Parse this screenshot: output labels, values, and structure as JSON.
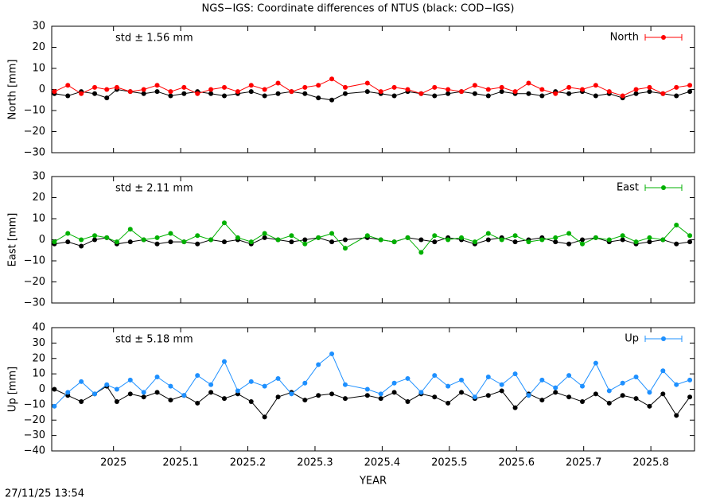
{
  "title": "NGS−IGS: Coordinate differences of NTUS (black: COD−IGS)",
  "timestamp": "27/11/25 13:54",
  "chart_data": [
    {
      "type": "line",
      "ylabel": "North [mm]",
      "annotation": "std ± 1.56 mm",
      "legend": "top-right",
      "x": [
        2024.912,
        2024.932,
        2024.952,
        2024.972,
        2024.99,
        2025.005,
        2025.025,
        2025.045,
        2025.065,
        2025.085,
        2025.105,
        2025.125,
        2025.145,
        2025.165,
        2025.185,
        2025.205,
        2025.225,
        2025.245,
        2025.265,
        2025.285,
        2025.305,
        2025.325,
        2025.345,
        2025.378,
        2025.398,
        2025.418,
        2025.438,
        2025.458,
        2025.478,
        2025.498,
        2025.518,
        2025.538,
        2025.558,
        2025.578,
        2025.598,
        2025.618,
        2025.638,
        2025.658,
        2025.678,
        2025.698,
        2025.718,
        2025.738,
        2025.758,
        2025.778,
        2025.798,
        2025.818,
        2025.838,
        2025.858
      ],
      "series": [
        {
          "color": "#000000",
          "values": [
            -2,
            -3,
            -1,
            -2,
            -4,
            0,
            -1,
            -2,
            -1,
            -3,
            -2,
            -1,
            -2,
            -3,
            -2,
            -1,
            -3,
            -2,
            -1,
            -2,
            -4,
            -5,
            -2,
            -1,
            -2,
            -3,
            -1,
            -2,
            -3,
            -2,
            -1,
            -2,
            -3,
            -1,
            -2,
            -2,
            -3,
            -1,
            -2,
            -1,
            -3,
            -2,
            -4,
            -2,
            -1,
            -2,
            -3,
            -1
          ]
        },
        {
          "name": "North",
          "color": "#ff0000",
          "values": [
            -1,
            2,
            -2,
            1,
            0,
            1,
            -1,
            0,
            2,
            -1,
            1,
            -2,
            0,
            1,
            -1,
            2,
            0,
            3,
            -1,
            1,
            2,
            5,
            1,
            3,
            -1,
            1,
            0,
            -2,
            1,
            0,
            -1,
            2,
            0,
            1,
            -1,
            3,
            0,
            -2,
            1,
            0,
            2,
            -1,
            -3,
            0,
            1,
            -2,
            1,
            2
          ]
        }
      ],
      "xlim": [
        2024.908,
        2025.865
      ],
      "xticks": [
        2025,
        2025.1,
        2025.2,
        2025.3,
        2025.4,
        2025.5,
        2025.6,
        2025.7,
        2025.8
      ],
      "ylim": [
        -30,
        30
      ],
      "yticks": [
        {
          "value": -30,
          "label": "−30"
        },
        {
          "value": -20,
          "label": "−20"
        },
        {
          "value": -10,
          "label": "−10"
        },
        0,
        10,
        20,
        30
      ]
    },
    {
      "type": "line",
      "ylabel": "East [mm]",
      "annotation": "std ± 2.11 mm",
      "legend": "top-right",
      "x": [
        2024.912,
        2024.932,
        2024.952,
        2024.972,
        2024.99,
        2025.005,
        2025.025,
        2025.045,
        2025.065,
        2025.085,
        2025.105,
        2025.125,
        2025.145,
        2025.165,
        2025.185,
        2025.205,
        2025.225,
        2025.245,
        2025.265,
        2025.285,
        2025.305,
        2025.325,
        2025.345,
        2025.378,
        2025.398,
        2025.418,
        2025.438,
        2025.458,
        2025.478,
        2025.498,
        2025.518,
        2025.538,
        2025.558,
        2025.578,
        2025.598,
        2025.618,
        2025.638,
        2025.658,
        2025.678,
        2025.698,
        2025.718,
        2025.738,
        2025.758,
        2025.778,
        2025.798,
        2025.818,
        2025.838,
        2025.858
      ],
      "series": [
        {
          "color": "#000000",
          "values": [
            -2,
            -1,
            -3,
            0,
            1,
            -2,
            -1,
            0,
            -2,
            -1,
            -1,
            -2,
            0,
            -1,
            0,
            -2,
            1,
            0,
            -1,
            0,
            1,
            -1,
            0,
            1,
            0,
            -1,
            1,
            0,
            -1,
            1,
            0,
            -2,
            0,
            1,
            -1,
            0,
            1,
            -1,
            -2,
            0,
            1,
            -1,
            0,
            -2,
            -1,
            0,
            -2,
            -1
          ]
        },
        {
          "name": "East",
          "color": "#00b000",
          "values": [
            -1,
            3,
            0,
            2,
            1,
            -1,
            5,
            0,
            1,
            3,
            -1,
            2,
            0,
            8,
            1,
            -1,
            3,
            0,
            2,
            -2,
            1,
            3,
            -4,
            2,
            0,
            -1,
            1,
            -6,
            2,
            0,
            1,
            -1,
            3,
            0,
            2,
            -1,
            0,
            1,
            3,
            -2,
            1,
            0,
            2,
            -1,
            1,
            0,
            7,
            2
          ]
        }
      ],
      "xlim": [
        2024.908,
        2025.865
      ],
      "xticks": [
        2025,
        2025.1,
        2025.2,
        2025.3,
        2025.4,
        2025.5,
        2025.6,
        2025.7,
        2025.8
      ],
      "ylim": [
        -30,
        30
      ],
      "yticks": [
        {
          "value": -30,
          "label": "−30"
        },
        {
          "value": -20,
          "label": "−20"
        },
        {
          "value": -10,
          "label": "−10"
        },
        0,
        10,
        20,
        30
      ]
    },
    {
      "type": "line",
      "ylabel": "Up [mm]",
      "xlabel": "YEAR",
      "annotation": "std ± 5.18 mm",
      "legend": "top-right",
      "x": [
        2024.912,
        2024.932,
        2024.952,
        2024.972,
        2024.99,
        2025.005,
        2025.025,
        2025.045,
        2025.065,
        2025.085,
        2025.105,
        2025.125,
        2025.145,
        2025.165,
        2025.185,
        2025.205,
        2025.225,
        2025.245,
        2025.265,
        2025.285,
        2025.305,
        2025.325,
        2025.345,
        2025.378,
        2025.398,
        2025.418,
        2025.438,
        2025.458,
        2025.478,
        2025.498,
        2025.518,
        2025.538,
        2025.558,
        2025.578,
        2025.598,
        2025.618,
        2025.638,
        2025.658,
        2025.678,
        2025.698,
        2025.718,
        2025.738,
        2025.758,
        2025.778,
        2025.798,
        2025.818,
        2025.838,
        2025.858
      ],
      "series": [
        {
          "color": "#000000",
          "values": [
            0,
            -4,
            -8,
            -3,
            2,
            -8,
            -3,
            -5,
            -2,
            -7,
            -4,
            -9,
            -2,
            -6,
            -3,
            -8,
            -18,
            -5,
            -2,
            -7,
            -4,
            -3,
            -6,
            -4,
            -6,
            -2,
            -8,
            -3,
            -5,
            -9,
            -2,
            -6,
            -4,
            -1,
            -12,
            -3,
            -7,
            -2,
            -5,
            -8,
            -3,
            -9,
            -4,
            -6,
            -11,
            -3,
            -17,
            -5
          ]
        },
        {
          "name": "Up",
          "color": "#1e90ff",
          "values": [
            -11,
            -2,
            5,
            -3,
            3,
            0,
            6,
            -2,
            8,
            2,
            -4,
            9,
            3,
            18,
            -1,
            5,
            2,
            7,
            -3,
            4,
            16,
            23,
            3,
            0,
            -3,
            4,
            7,
            -2,
            9,
            2,
            6,
            -5,
            8,
            3,
            10,
            -4,
            6,
            1,
            9,
            2,
            17,
            -1,
            4,
            8,
            -2,
            12,
            3,
            6
          ]
        }
      ],
      "xlim": [
        2024.908,
        2025.865
      ],
      "xticks": [
        2025,
        2025.1,
        2025.2,
        2025.3,
        2025.4,
        2025.5,
        2025.6,
        2025.7,
        2025.8
      ],
      "ylim": [
        -40,
        40
      ],
      "yticks": [
        {
          "value": -40,
          "label": "−40"
        },
        {
          "value": -30,
          "label": "−30"
        },
        {
          "value": -20,
          "label": "−20"
        },
        {
          "value": -10,
          "label": "−10"
        },
        0,
        10,
        20,
        30,
        40
      ]
    }
  ]
}
